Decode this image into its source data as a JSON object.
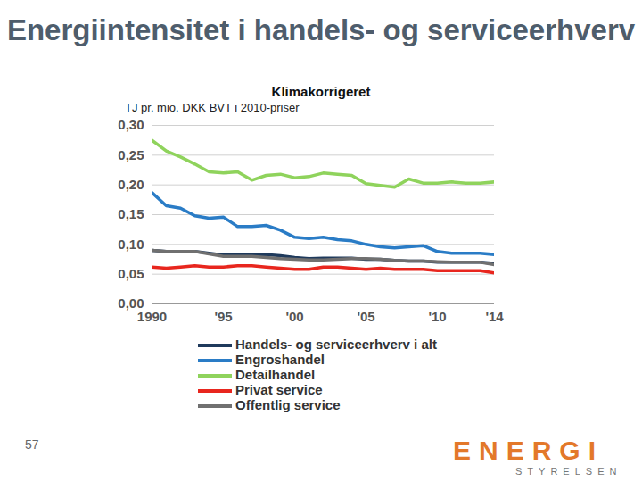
{
  "chart_data": {
    "type": "line",
    "title": "Energiintensitet i handels- og serviceerhverv",
    "subtitle": "Klimakorrigeret",
    "y_label": "TJ pr. mio. DKK BVT i 2010-priser",
    "x": [
      1990,
      1991,
      1992,
      1993,
      1994,
      1995,
      1996,
      1997,
      1998,
      1999,
      2000,
      2001,
      2002,
      2003,
      2004,
      2005,
      2006,
      2007,
      2008,
      2009,
      2010,
      2011,
      2012,
      2013,
      2014
    ],
    "xlim": [
      1990,
      2014
    ],
    "xticks": [
      {
        "value": 1990,
        "label": "1990"
      },
      {
        "value": 1995,
        "label": "'95"
      },
      {
        "value": 2000,
        "label": "'00"
      },
      {
        "value": 2005,
        "label": "'05"
      },
      {
        "value": 2010,
        "label": "'10"
      },
      {
        "value": 2014,
        "label": "'14"
      }
    ],
    "ylim": [
      0,
      0.3
    ],
    "yticks": [
      {
        "value": 0,
        "label": "0,00"
      },
      {
        "value": 0.05,
        "label": "0,05"
      },
      {
        "value": 0.1,
        "label": "0,10"
      },
      {
        "value": 0.15,
        "label": "0,15"
      },
      {
        "value": 0.2,
        "label": "0,20"
      },
      {
        "value": 0.25,
        "label": "0,25"
      },
      {
        "value": 0.3,
        "label": "0,30"
      }
    ],
    "grid": true,
    "legend": "bottom",
    "series": [
      {
        "name": "Handels- og serviceerhverv i alt",
        "color": "#1f3a5c",
        "values": [
          0.09,
          0.088,
          0.088,
          0.088,
          0.085,
          0.082,
          0.082,
          0.083,
          0.083,
          0.081,
          0.078,
          0.076,
          0.077,
          0.077,
          0.077,
          0.075,
          0.075,
          0.073,
          0.072,
          0.072,
          0.07,
          0.07,
          0.07,
          0.07,
          0.068
        ]
      },
      {
        "name": "Engroshandel",
        "color": "#2a7cc6",
        "values": [
          0.187,
          0.165,
          0.161,
          0.148,
          0.144,
          0.146,
          0.13,
          0.13,
          0.132,
          0.124,
          0.112,
          0.11,
          0.112,
          0.108,
          0.106,
          0.1,
          0.096,
          0.094,
          0.096,
          0.098,
          0.088,
          0.085,
          0.085,
          0.085,
          0.083
        ]
      },
      {
        "name": "Detailhandel",
        "color": "#8fd35c",
        "values": [
          0.275,
          0.257,
          0.247,
          0.235,
          0.222,
          0.22,
          0.222,
          0.208,
          0.216,
          0.218,
          0.212,
          0.214,
          0.22,
          0.218,
          0.216,
          0.202,
          0.199,
          0.196,
          0.21,
          0.203,
          0.203,
          0.205,
          0.203,
          0.203,
          0.205
        ]
      },
      {
        "name": "Privat service",
        "color": "#e8261e",
        "values": [
          0.062,
          0.06,
          0.062,
          0.064,
          0.062,
          0.062,
          0.064,
          0.064,
          0.062,
          0.06,
          0.058,
          0.058,
          0.062,
          0.062,
          0.06,
          0.058,
          0.06,
          0.058,
          0.058,
          0.058,
          0.056,
          0.056,
          0.056,
          0.056,
          0.052
        ]
      },
      {
        "name": "Offentlig service",
        "color": "#707070",
        "values": [
          0.09,
          0.088,
          0.088,
          0.088,
          0.084,
          0.08,
          0.08,
          0.08,
          0.078,
          0.076,
          0.075,
          0.074,
          0.074,
          0.075,
          0.076,
          0.076,
          0.075,
          0.073,
          0.072,
          0.072,
          0.071,
          0.07,
          0.07,
          0.07,
          0.066
        ]
      }
    ]
  },
  "slide": {
    "page_number": "57",
    "logo": [
      "ENERGI",
      "STYRELSEN"
    ]
  }
}
